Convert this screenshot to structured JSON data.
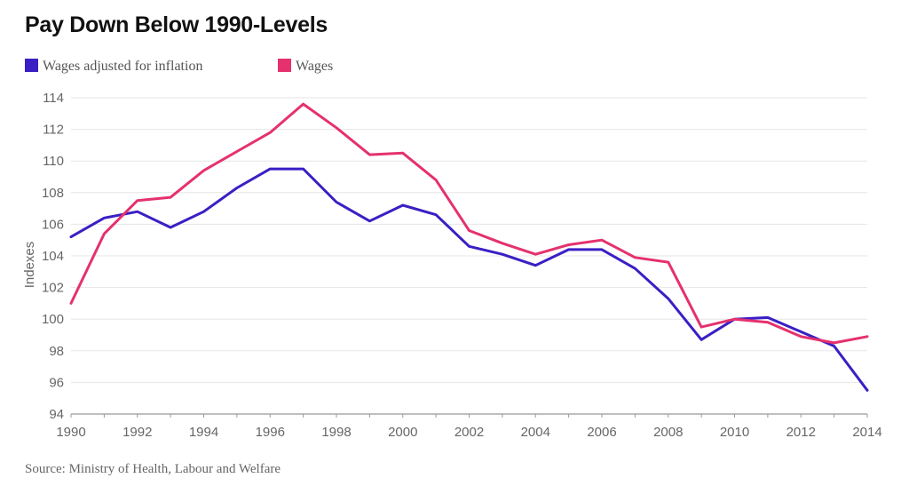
{
  "chart_data": {
    "type": "line",
    "title": "Pay Down Below 1990-Levels",
    "xlabel": "",
    "ylabel": "Indexes",
    "xlim": [
      1990,
      2014
    ],
    "ylim": [
      94,
      114
    ],
    "x_ticks": [
      "1990",
      "1992",
      "1994",
      "1996",
      "1998",
      "2000",
      "2002",
      "2004",
      "2006",
      "2008",
      "2010",
      "2012",
      "2014"
    ],
    "y_ticks": [
      "94",
      "96",
      "98",
      "100",
      "102",
      "104",
      "106",
      "108",
      "110",
      "112",
      "114"
    ],
    "x": [
      1990,
      1991,
      1992,
      1993,
      1994,
      1995,
      1996,
      1997,
      1998,
      1999,
      2000,
      2001,
      2002,
      2003,
      2004,
      2005,
      2006,
      2007,
      2008,
      2009,
      2010,
      2011,
      2012,
      2013,
      2014
    ],
    "series": [
      {
        "name": "Wages adjusted for inflation",
        "color": "#3a1fc4",
        "values": [
          105.2,
          106.4,
          106.8,
          105.8,
          106.8,
          108.3,
          109.5,
          109.5,
          107.4,
          106.2,
          107.2,
          106.6,
          104.6,
          104.1,
          103.4,
          104.4,
          104.4,
          103.2,
          101.3,
          98.7,
          100.0,
          100.1,
          99.2,
          98.3,
          95.5
        ]
      },
      {
        "name": "Wages",
        "color": "#e5316d",
        "values": [
          101.0,
          105.4,
          107.5,
          107.7,
          109.4,
          110.6,
          111.8,
          113.6,
          112.1,
          110.4,
          110.5,
          108.8,
          105.6,
          104.8,
          104.1,
          104.7,
          105.0,
          103.9,
          103.6,
          99.5,
          100.0,
          99.8,
          98.9,
          98.5,
          98.9
        ]
      }
    ],
    "grid": true,
    "legend": "top-left",
    "source": "Source: Ministry of Health, Labour and Welfare"
  }
}
